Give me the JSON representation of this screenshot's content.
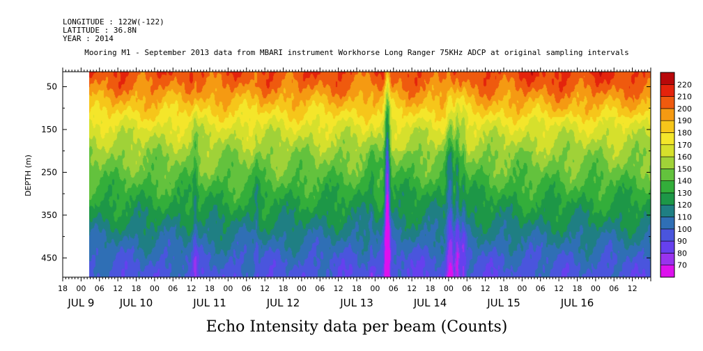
{
  "header": {
    "longitude": "LONGITUDE : 122W(-122)",
    "latitude": "LATITUDE : 36.8N",
    "year": "YEAR : 2014"
  },
  "chart_data": {
    "type": "heatmap",
    "title": "Mooring M1 - September 2013 data from MBARI instrument Workhorse Long Ranger 75KHz ADCP at original sampling intervals",
    "bottom_title": "Echo Intensity data per beam (Counts)",
    "ylabel": "DEPTH (m)",
    "ylim": [
      15,
      495
    ],
    "y_inverted": true,
    "yticks": [
      50,
      150,
      250,
      350,
      450
    ],
    "yticks_minor": [
      100,
      200,
      300,
      400
    ],
    "xrange_hours": [
      -6,
      186
    ],
    "data_start_hour": 3,
    "x_hour_ticks": [
      "18",
      "00",
      "06",
      "12",
      "18",
      "00",
      "06",
      "12",
      "18",
      "00",
      "06",
      "12",
      "18",
      "00",
      "06",
      "12",
      "18",
      "00",
      "06",
      "12",
      "18",
      "00",
      "06",
      "12",
      "18",
      "00",
      "06",
      "12",
      "18",
      "00",
      "06",
      "12"
    ],
    "date_labels": [
      "JUL 9",
      "JUL 10",
      "JUL 11",
      "JUL 12",
      "JUL 13",
      "JUL 14",
      "JUL 15",
      "JUL 16"
    ],
    "date_label_hours": [
      0,
      18,
      42,
      66,
      90,
      114,
      138,
      162
    ],
    "colorbar": {
      "levels": [
        70,
        80,
        90,
        100,
        110,
        120,
        130,
        140,
        150,
        160,
        170,
        180,
        190,
        200,
        210,
        220
      ],
      "colors": [
        "#dd11ee",
        "#9933ee",
        "#6640ee",
        "#4a55dd",
        "#2f6fb5",
        "#1f7f83",
        "#1d9747",
        "#33ae3a",
        "#63c23d",
        "#a0d238",
        "#d6e02c",
        "#f4e62a",
        "#f6c61a",
        "#f59a12",
        "#ef5a0e",
        "#e4230c",
        "#b8080a"
      ]
    },
    "profile": {
      "depths": [
        15,
        50,
        100,
        150,
        200,
        250,
        300,
        350,
        400,
        450,
        495
      ],
      "counts": [
        208,
        200,
        183,
        166,
        154,
        145,
        134,
        124,
        112,
        101,
        95
      ]
    },
    "low_echo_events": [
      {
        "hour": 37.5,
        "strength": 16
      },
      {
        "hour": 57.5,
        "strength": 10
      },
      {
        "hour": 95,
        "strength": 10
      },
      {
        "hour": 100,
        "strength": 30
      },
      {
        "hour": 100.3,
        "strength": 42
      },
      {
        "hour": 120,
        "strength": 18
      },
      {
        "hour": 121,
        "strength": 24
      },
      {
        "hour": 123,
        "strength": 24
      },
      {
        "hour": 125,
        "strength": 16
      }
    ]
  }
}
